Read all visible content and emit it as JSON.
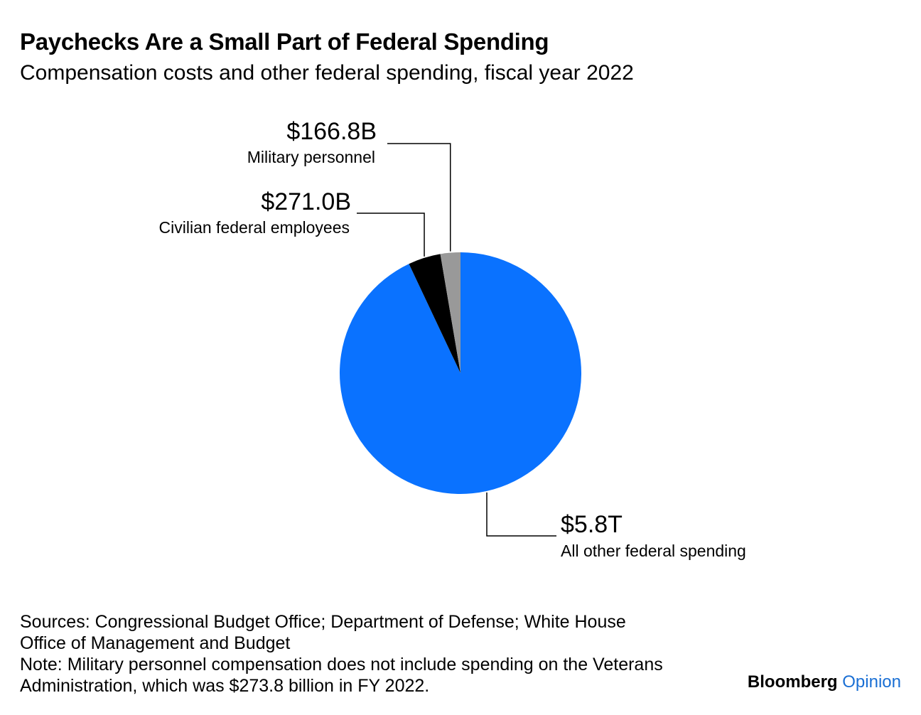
{
  "title": "Paychecks Are a Small Part of Federal Spending",
  "subtitle": "Compensation costs and other federal spending, fiscal year 2022",
  "chart_data": {
    "type": "pie",
    "title": "Paychecks Are a Small Part of Federal Spending",
    "subtitle": "Compensation costs and other federal spending, fiscal year 2022",
    "unit": "billions of dollars",
    "slices": [
      {
        "label": "All other federal spending",
        "value": 5800,
        "display": "$5.8T",
        "color": "#0a72ff"
      },
      {
        "label": "Civilian federal employees",
        "value": 271.0,
        "display": "$271.0B",
        "color": "#000000"
      },
      {
        "label": "Military personnel",
        "value": 166.8,
        "display": "$166.8B",
        "color": "#999999"
      }
    ]
  },
  "footer": {
    "sources_line1": "Sources: Congressional Budget Office; Department of Defense; White House",
    "sources_line2": "Office of Management and Budget",
    "note_line1": "Note: Military personnel compensation does not include spending on the Veterans",
    "note_line2": "Administration, which was $273.8 billion in FY 2022."
  },
  "brand": {
    "name": "Bloomberg",
    "suffix": "Opinion"
  }
}
